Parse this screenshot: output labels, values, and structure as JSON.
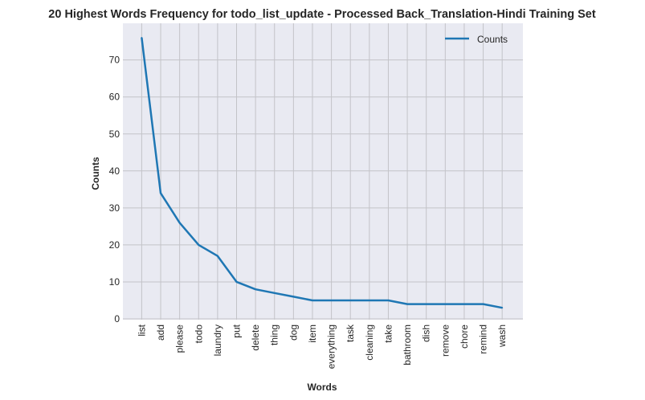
{
  "chart_data": {
    "type": "line",
    "title": "20 Highest Words Frequency for todo_list_update - Processed Back_Translation-Hindi Training Set",
    "xlabel": "Words",
    "ylabel": "Counts",
    "categories": [
      "list",
      "add",
      "please",
      "todo",
      "laundry",
      "put",
      "delete",
      "thing",
      "dog",
      "item",
      "everything",
      "task",
      "cleaning",
      "take",
      "bathroom",
      "dish",
      "remove",
      "chore",
      "remind",
      "wash"
    ],
    "series": [
      {
        "name": "Counts",
        "values": [
          76,
          34,
          26,
          20,
          17,
          10,
          8,
          7,
          6,
          5,
          5,
          5,
          5,
          5,
          4,
          4,
          4,
          4,
          4,
          3
        ]
      }
    ],
    "ylim": [
      0,
      80
    ],
    "yticks": [
      0,
      10,
      20,
      30,
      40,
      50,
      60,
      70
    ],
    "grid": true,
    "legend_position": "top-right",
    "colors": {
      "line": "#1f77b4",
      "plot_background": "#e9eaf2",
      "grid": "#c3c3c8"
    }
  }
}
